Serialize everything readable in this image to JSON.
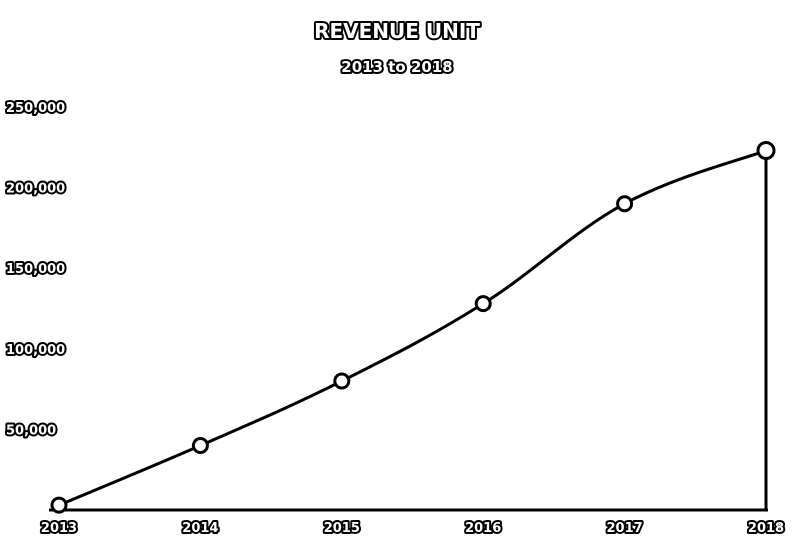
{
  "chart_data": {
    "type": "line",
    "title": "REVENUE UNIT",
    "subtitle": "2013 to 2018",
    "xlabel": "",
    "ylabel": "",
    "categories": [
      "2013",
      "2014",
      "2015",
      "2016",
      "2017",
      "2018"
    ],
    "series": [
      {
        "values": [
          3000,
          40000,
          80000,
          128000,
          190000,
          223000
        ]
      }
    ],
    "ylim": [
      0,
      250000
    ],
    "yticks": [
      "250,000",
      "200,000",
      "150,000",
      "100,000",
      "50,000"
    ],
    "ytick_values": [
      250000,
      200000,
      150000,
      100000,
      50000
    ],
    "grid": false,
    "legend": "none",
    "colors": {
      "line": "#000000",
      "marker_fill": "#ffffff",
      "background": "#ffffff"
    }
  }
}
